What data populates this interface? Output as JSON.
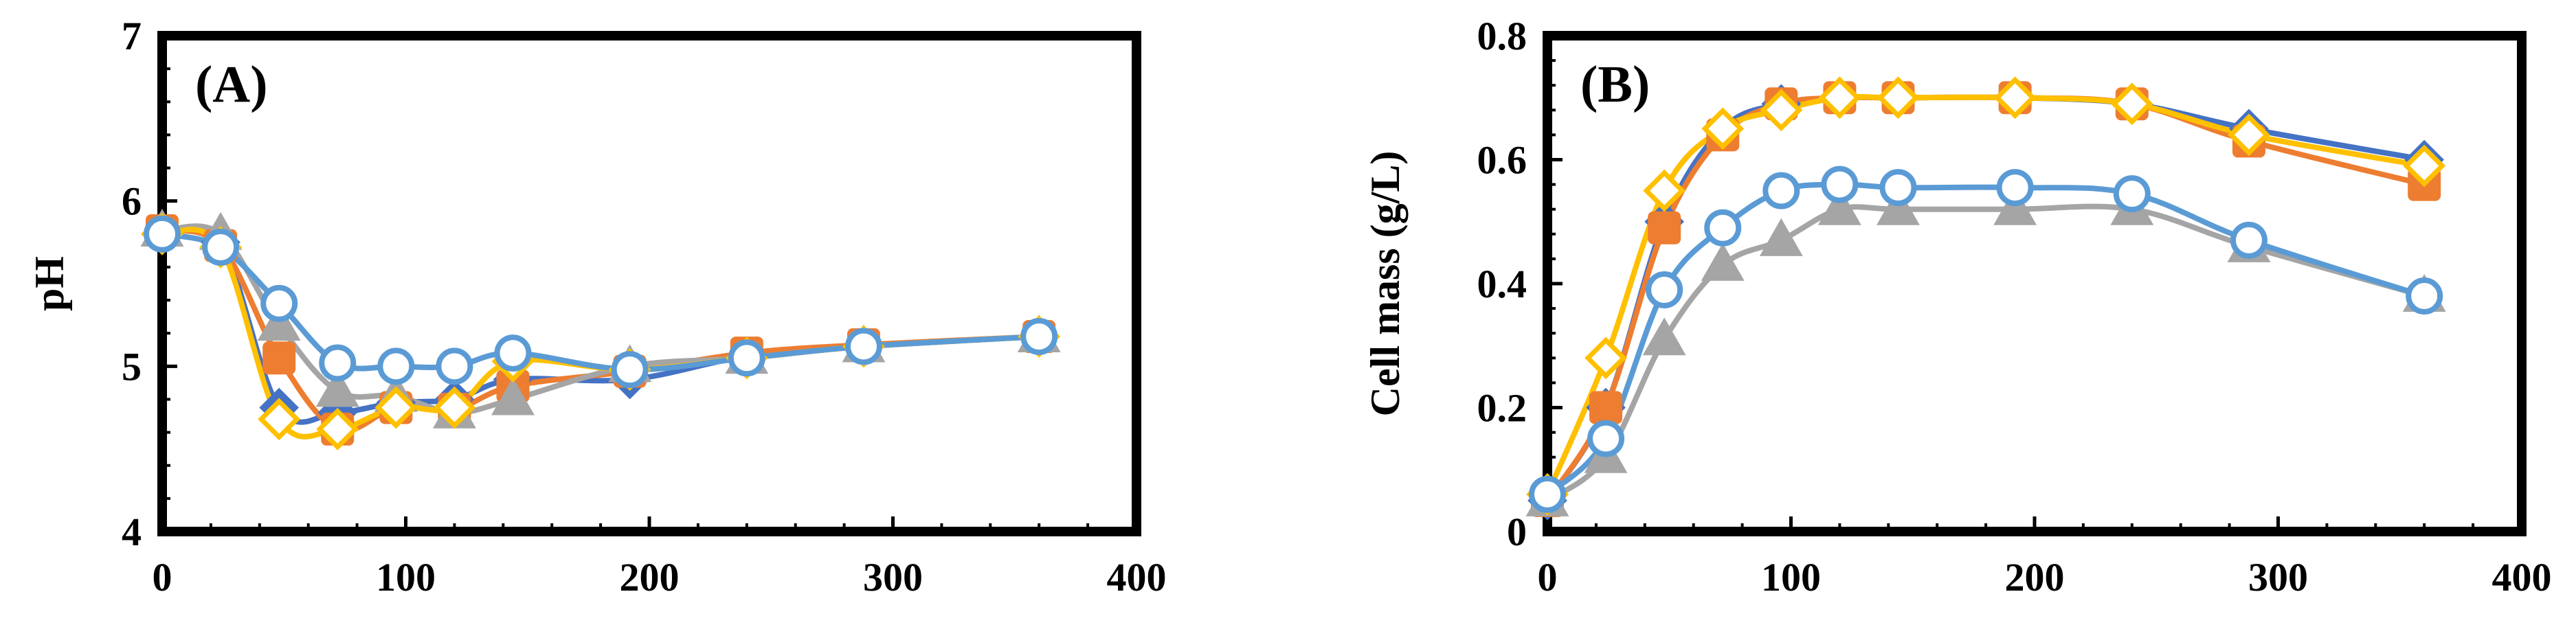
{
  "chart_data": [
    {
      "type": "line",
      "panel_label": "(A)",
      "xlabel": "",
      "ylabel": "pH",
      "xlim": [
        0,
        400
      ],
      "ylim": [
        4,
        7
      ],
      "xticks": [
        0,
        100,
        200,
        300,
        400
      ],
      "yticks": [
        4,
        5,
        6,
        7
      ],
      "grid": false,
      "series": [
        {
          "name": "series-1",
          "marker": "diamond-filled",
          "color": "#4472C4",
          "x": [
            0,
            24,
            48,
            72,
            96,
            120,
            144,
            192,
            240,
            288,
            360
          ],
          "y": [
            5.8,
            5.75,
            4.75,
            4.72,
            4.78,
            4.8,
            4.92,
            4.92,
            5.06,
            5.12,
            5.18
          ]
        },
        {
          "name": "series-2",
          "marker": "square",
          "color": "#ED7D31",
          "x": [
            0,
            24,
            48,
            72,
            96,
            120,
            144,
            192,
            240,
            288,
            360
          ],
          "y": [
            5.82,
            5.73,
            5.05,
            4.62,
            4.75,
            4.74,
            4.88,
            4.97,
            5.08,
            5.13,
            5.18
          ]
        },
        {
          "name": "series-3",
          "marker": "triangle",
          "color": "#A5A5A5",
          "x": [
            0,
            24,
            48,
            72,
            96,
            120,
            144,
            192,
            240,
            288,
            360
          ],
          "y": [
            5.82,
            5.8,
            5.25,
            4.85,
            4.82,
            4.72,
            4.8,
            5.0,
            5.05,
            5.12,
            5.18
          ]
        },
        {
          "name": "series-4",
          "marker": "diamond-open",
          "color": "#FFC000",
          "x": [
            0,
            24,
            48,
            72,
            96,
            120,
            144,
            192,
            240,
            288,
            360
          ],
          "y": [
            5.8,
            5.72,
            4.68,
            4.62,
            4.75,
            4.75,
            5.03,
            4.98,
            5.05,
            5.12,
            5.18
          ]
        },
        {
          "name": "series-5",
          "marker": "circle-open",
          "color": "#5B9BD5",
          "x": [
            0,
            24,
            48,
            72,
            96,
            120,
            144,
            192,
            240,
            288,
            360
          ],
          "y": [
            5.8,
            5.72,
            5.38,
            5.02,
            5.0,
            5.0,
            5.08,
            4.98,
            5.05,
            5.12,
            5.18
          ]
        }
      ]
    },
    {
      "type": "line",
      "panel_label": "(B)",
      "xlabel": "",
      "ylabel": "Cell mass (g/L)",
      "xlim": [
        0,
        400
      ],
      "ylim": [
        0,
        0.8
      ],
      "xticks": [
        0,
        100,
        200,
        300,
        400
      ],
      "yticks": [
        0,
        0.2,
        0.4,
        0.6,
        0.8
      ],
      "ytick_labels": [
        "0",
        "0.2",
        "0.4",
        "0.6",
        "0.8"
      ],
      "grid": false,
      "series": [
        {
          "name": "series-1",
          "marker": "diamond-filled",
          "color": "#4472C4",
          "x": [
            0,
            24,
            48,
            72,
            96,
            120,
            144,
            192,
            240,
            288,
            360
          ],
          "y": [
            0.05,
            0.2,
            0.5,
            0.65,
            0.69,
            0.7,
            0.7,
            0.7,
            0.69,
            0.65,
            0.6
          ]
        },
        {
          "name": "series-2",
          "marker": "square",
          "color": "#ED7D31",
          "x": [
            0,
            24,
            48,
            72,
            96,
            120,
            144,
            192,
            240,
            288,
            360
          ],
          "y": [
            0.05,
            0.2,
            0.49,
            0.64,
            0.69,
            0.7,
            0.7,
            0.7,
            0.69,
            0.63,
            0.56
          ]
        },
        {
          "name": "series-3",
          "marker": "triangle",
          "color": "#A5A5A5",
          "x": [
            0,
            24,
            48,
            72,
            96,
            120,
            144,
            192,
            240,
            288,
            360
          ],
          "y": [
            0.05,
            0.12,
            0.31,
            0.43,
            0.47,
            0.52,
            0.52,
            0.52,
            0.52,
            0.46,
            0.38
          ]
        },
        {
          "name": "series-4",
          "marker": "diamond-open",
          "color": "#FFC000",
          "x": [
            0,
            24,
            48,
            72,
            96,
            120,
            144,
            192,
            240,
            288,
            360
          ],
          "y": [
            0.06,
            0.28,
            0.55,
            0.65,
            0.68,
            0.7,
            0.7,
            0.7,
            0.69,
            0.64,
            0.59
          ]
        },
        {
          "name": "series-5",
          "marker": "circle-open",
          "color": "#5B9BD5",
          "x": [
            0,
            24,
            48,
            72,
            96,
            120,
            144,
            192,
            240,
            288,
            360
          ],
          "y": [
            0.06,
            0.15,
            0.39,
            0.49,
            0.55,
            0.56,
            0.555,
            0.555,
            0.545,
            0.47,
            0.38
          ]
        }
      ]
    }
  ]
}
